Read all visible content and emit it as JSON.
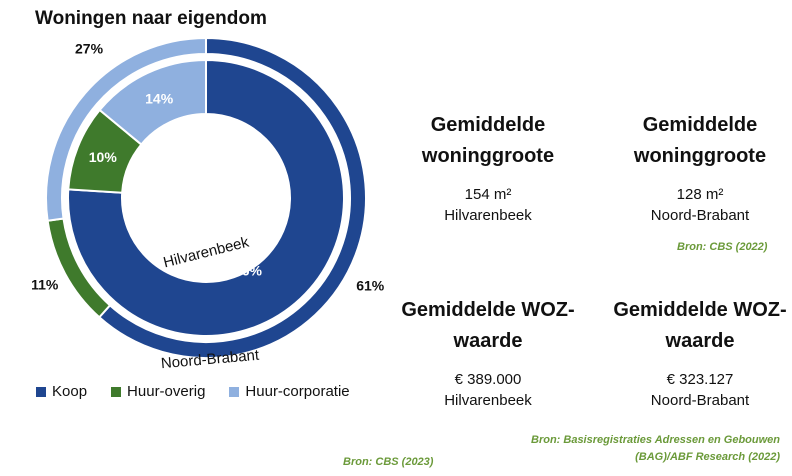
{
  "chart_data": {
    "type": "donut",
    "title": "Woningen naar eigendom",
    "categories": [
      "Koop",
      "Huur-overig",
      "Huur-corporatie"
    ],
    "colors": {
      "Koop": "#1f4690",
      "Huur-overig": "#3f7a2c",
      "Huur-corporatie": "#8fb0df"
    },
    "series": [
      {
        "name": "Hilvarenbeek",
        "values": [
          76,
          10,
          14
        ]
      },
      {
        "name": "Noord-Brabant",
        "values": [
          61,
          11,
          27
        ]
      }
    ],
    "value_labels": {
      "inner": [
        "76%",
        "10%",
        "14%"
      ],
      "outer": [
        "61%",
        "11%",
        "27%"
      ]
    },
    "legend_position": "bottom"
  },
  "source_left": "Bron: CBS (2023)",
  "stats": {
    "grootte_heading": "Gemiddelde woninggroote",
    "grootte_hilvarenbeek_value": "154 m²",
    "grootte_hilvarenbeek_place": "Hilvarenbeek",
    "grootte_brabant_value": "128 m²",
    "grootte_brabant_place": "Noord-Brabant",
    "grootte_source": "Bron: CBS (2022)",
    "woz_heading": "Gemiddelde WOZ-waarde",
    "woz_hilvarenbeek_value": "€ 389.000",
    "woz_hilvarenbeek_place": "Hilvarenbeek",
    "woz_brabant_value": "€ 323.127",
    "woz_brabant_place": "Noord-Brabant",
    "woz_source_line1": "Bron: Basisregistraties Adressen en Gebouwen",
    "woz_source_line2": "(BAG)/ABF Research (2022)"
  }
}
